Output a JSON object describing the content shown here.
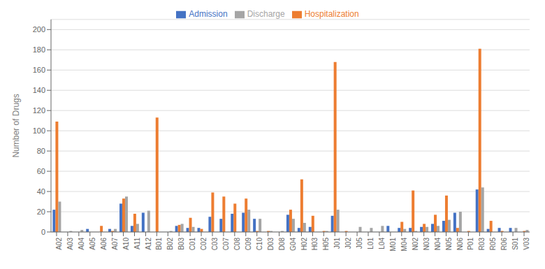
{
  "chart_data": {
    "type": "bar",
    "categories": [
      "A02",
      "A03",
      "A04",
      "A05",
      "A06",
      "A07",
      "A10",
      "A11",
      "A12",
      "B01",
      "B02",
      "B03",
      "C01",
      "C02",
      "C03",
      "C07",
      "C08",
      "C09",
      "C10",
      "D03",
      "D08",
      "G04",
      "H02",
      "H03",
      "H05",
      "J01",
      "J02",
      "J05",
      "L01",
      "L04",
      "M01",
      "M04",
      "N02",
      "N03",
      "N04",
      "N05",
      "N06",
      "P01",
      "R03",
      "R05",
      "R06",
      "S01",
      "V03"
    ],
    "series": [
      {
        "name": "Admission",
        "color": "#4472C4",
        "values": [
          22,
          0,
          0,
          3,
          0,
          3,
          28,
          6,
          19,
          0,
          0,
          6,
          4,
          4,
          15,
          13,
          18,
          19,
          13,
          0,
          0,
          17,
          4,
          5,
          0,
          16,
          0,
          0,
          0,
          0,
          6,
          4,
          4,
          5,
          8,
          11,
          19,
          0,
          42,
          3,
          4,
          4,
          0
        ]
      },
      {
        "name": "Hospitalization",
        "color": "#ED7D31",
        "values": [
          109,
          0,
          0,
          0,
          6,
          1,
          33,
          18,
          0,
          113,
          0,
          7,
          14,
          3,
          39,
          35,
          28,
          33,
          1,
          1,
          0,
          22,
          52,
          16,
          1,
          168,
          1,
          0,
          0,
          0,
          0,
          10,
          41,
          8,
          17,
          36,
          4,
          1,
          181,
          11,
          1,
          0,
          1
        ]
      },
      {
        "name": "Discharge",
        "color": "#A5A5A5",
        "values": [
          30,
          1,
          2,
          0,
          0,
          3,
          35,
          8,
          21,
          0,
          1,
          8,
          5,
          0,
          0,
          0,
          0,
          22,
          13,
          1,
          1,
          13,
          9,
          0,
          1,
          22,
          0,
          5,
          4,
          6,
          0,
          3,
          1,
          5,
          6,
          12,
          20,
          0,
          44,
          0,
          0,
          4,
          2
        ]
      }
    ],
    "ylabel": "Number of Drugs",
    "ylim": [
      0,
      210
    ],
    "yticks": [
      0,
      20,
      40,
      60,
      80,
      100,
      120,
      140,
      160,
      180,
      200
    ],
    "grid": true,
    "legend": "top"
  }
}
